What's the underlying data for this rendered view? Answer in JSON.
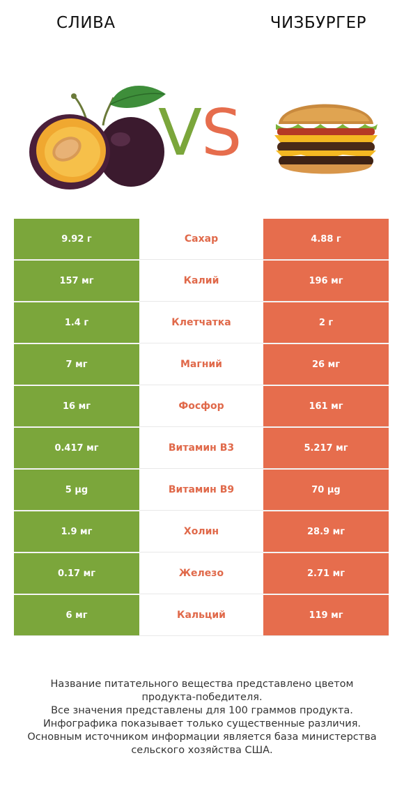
{
  "header": {
    "left_title": "СЛИВА",
    "right_title": "ЧИЗБУРГЕР",
    "vs_left": "V",
    "vs_right": "S"
  },
  "colors": {
    "winner_left": "#7ba63b",
    "winner_right": "#e66d4d",
    "nutrient_label": "#e0694a"
  },
  "rows": [
    {
      "left": "9.92 г",
      "nutrient": "Сахар",
      "right": "4.88 г"
    },
    {
      "left": "157 мг",
      "nutrient": "Калий",
      "right": "196 мг"
    },
    {
      "left": "1.4 г",
      "nutrient": "Клетчатка",
      "right": "2 г"
    },
    {
      "left": "7 мг",
      "nutrient": "Магний",
      "right": "26 мг"
    },
    {
      "left": "16 мг",
      "nutrient": "Фосфор",
      "right": "161 мг"
    },
    {
      "left": "0.417 мг",
      "nutrient": "Витамин B3",
      "right": "5.217 мг"
    },
    {
      "left": "5 µg",
      "nutrient": "Витамин B9",
      "right": "70 µg"
    },
    {
      "left": "1.9 мг",
      "nutrient": "Холин",
      "right": "28.9 мг"
    },
    {
      "left": "0.17 мг",
      "nutrient": "Железо",
      "right": "2.71 мг"
    },
    {
      "left": "6 мг",
      "nutrient": "Кальций",
      "right": "119 мг"
    }
  ],
  "footer": {
    "line1": "Название питательного вещества представлено цветом",
    "line2": "продукта-победителя.",
    "line3": "Все значения представлены для 100 граммов продукта.",
    "line4": "Инфографика показывает только существенные различия.",
    "line5": "Основным источником информации является база министерства",
    "line6": "сельского хозяйства США."
  }
}
